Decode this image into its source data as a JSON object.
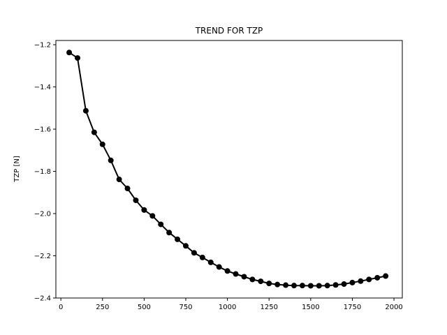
{
  "chart_data": {
    "type": "line",
    "title": "TREND FOR TZP",
    "xlabel": "",
    "ylabel": "TZP [N]",
    "xlim": [
      -30,
      2050
    ],
    "ylim": [
      -2.4,
      -1.18
    ],
    "xticks": [
      0,
      250,
      500,
      750,
      1000,
      1250,
      1500,
      1750,
      2000
    ],
    "yticks": [
      -2.4,
      -2.2,
      -2.0,
      -1.8,
      -1.6,
      -1.4,
      -1.2
    ],
    "xtick_labels": [
      "0",
      "250",
      "500",
      "750",
      "1000",
      "1250",
      "1500",
      "1750",
      "2000"
    ],
    "ytick_labels": [
      "−2.4",
      "−2.2",
      "−2.0",
      "−1.8",
      "−1.6",
      "−1.4",
      "−1.2"
    ],
    "grid": false,
    "legend": "none",
    "color": "#000000",
    "x": [
      50,
      100,
      150,
      200,
      250,
      300,
      350,
      400,
      450,
      500,
      550,
      600,
      650,
      700,
      750,
      800,
      850,
      900,
      950,
      1000,
      1050,
      1100,
      1150,
      1200,
      1250,
      1300,
      1350,
      1400,
      1450,
      1500,
      1550,
      1600,
      1650,
      1700,
      1750,
      1800,
      1850,
      1900,
      1950
    ],
    "y": [
      -1.237,
      -1.263,
      -1.513,
      -1.615,
      -1.672,
      -1.748,
      -1.838,
      -1.881,
      -1.937,
      -1.983,
      -2.011,
      -2.051,
      -2.09,
      -2.122,
      -2.153,
      -2.186,
      -2.208,
      -2.231,
      -2.253,
      -2.272,
      -2.286,
      -2.299,
      -2.312,
      -2.321,
      -2.331,
      -2.336,
      -2.339,
      -2.341,
      -2.341,
      -2.342,
      -2.342,
      -2.341,
      -2.338,
      -2.334,
      -2.327,
      -2.32,
      -2.312,
      -2.304,
      -2.296
    ]
  }
}
